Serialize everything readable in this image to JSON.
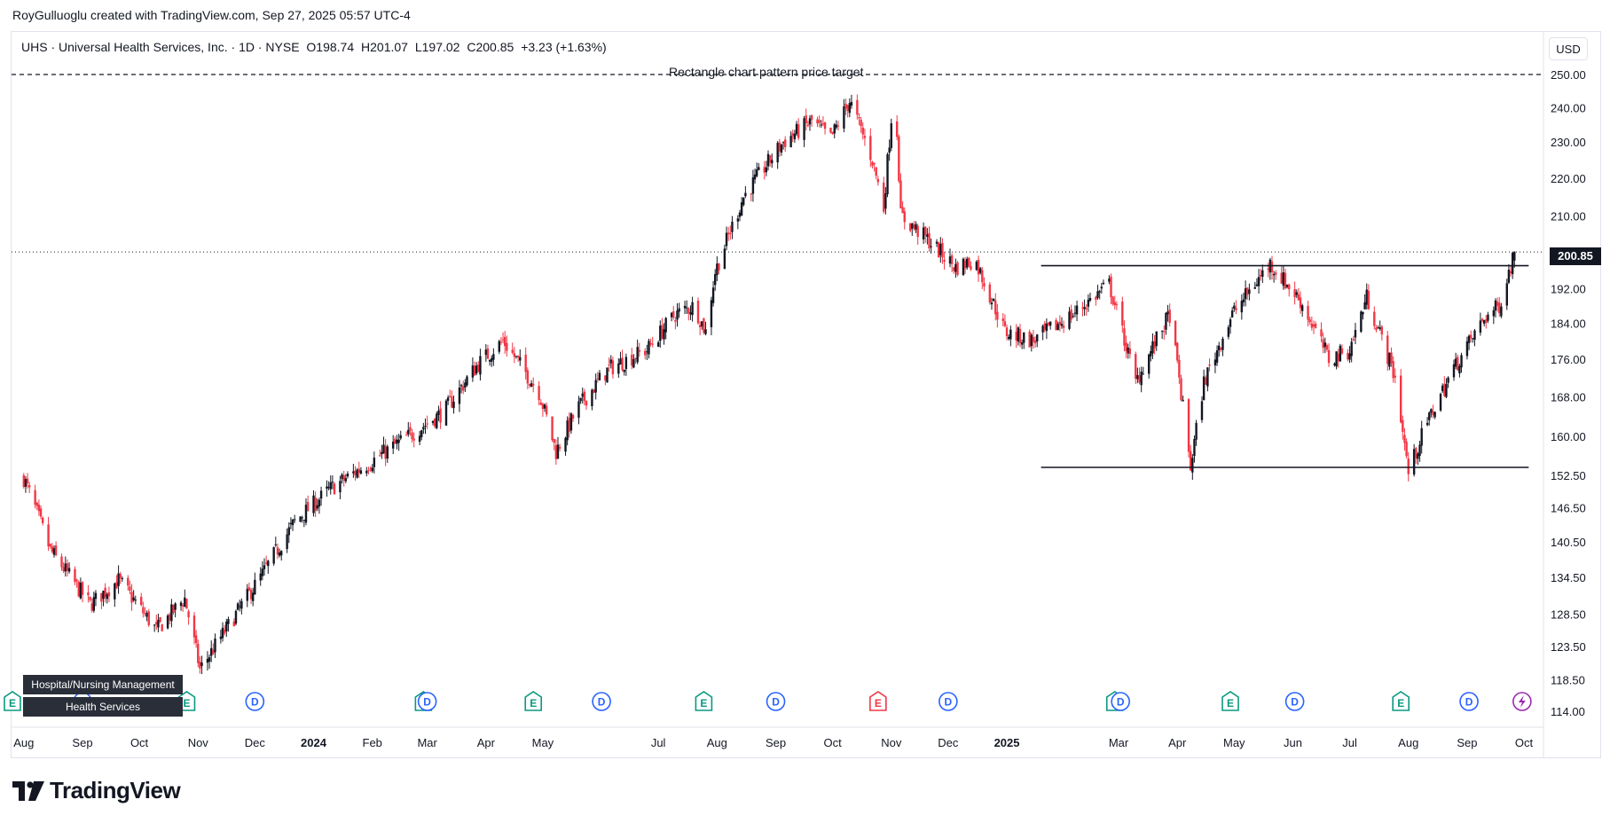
{
  "credit": "RoyGulluoglu created with TradingView.com, Sep 27, 2025 05:57 UTC-4",
  "header": {
    "symbol": "UHS · Universal Health Services, Inc. · 1D · NYSE",
    "open": "O198.74",
    "high": "H201.07",
    "low": "L197.02",
    "close": "C200.85",
    "change": "+3.23 (+1.63%)"
  },
  "currency": "USD",
  "target_label": "Rectangle chart pattern price target",
  "last_price": "200.85",
  "sector_tags": [
    "Hospital/Nursing Management",
    "Health Services"
  ],
  "logo_text": "TradingView",
  "colors": {
    "up": "#131722",
    "down": "#f23645",
    "earnings": "#089981",
    "earnings_future": "#f23645",
    "dividend": "#2962ff",
    "split": "#9c27b0"
  },
  "chart_data": {
    "type": "candlestick",
    "title": "UHS · Universal Health Services, Inc. · 1D · NYSE",
    "y_axis": {
      "ticks": [
        "250.00",
        "240.00",
        "230.00",
        "220.00",
        "210.00",
        "200.85",
        "192.00",
        "184.00",
        "176.00",
        "168.00",
        "160.00",
        "152.50",
        "146.50",
        "140.50",
        "134.50",
        "128.50",
        "123.50",
        "118.50",
        "114.00"
      ],
      "scale": "log"
    },
    "x_axis": {
      "ticks": [
        "Aug",
        "Sep",
        "Oct",
        "Nov",
        "Dec",
        "2024",
        "Feb",
        "Mar",
        "Apr",
        "May",
        "Jul",
        "Aug",
        "Sep",
        "Oct",
        "Nov",
        "Dec",
        "2025",
        "Mar",
        "Apr",
        "May",
        "Jun",
        "Jul",
        "Aug",
        "Sep",
        "Oct"
      ],
      "year_ticks": [
        "2024",
        "2025"
      ]
    },
    "price_path": [
      [
        "2023-08-01",
        152
      ],
      [
        "2023-08-15",
        139
      ],
      [
        "2023-09-05",
        130
      ],
      [
        "2023-09-20",
        134
      ],
      [
        "2023-10-10",
        126
      ],
      [
        "2023-10-25",
        131
      ],
      [
        "2023-11-02",
        120
      ],
      [
        "2023-11-20",
        128
      ],
      [
        "2023-12-05",
        135
      ],
      [
        "2023-12-22",
        144
      ],
      [
        "2024-01-10",
        150
      ],
      [
        "2024-01-31",
        155
      ],
      [
        "2024-02-20",
        160
      ],
      [
        "2024-03-10",
        165
      ],
      [
        "2024-03-28",
        175
      ],
      [
        "2024-04-10",
        180
      ],
      [
        "2024-04-29",
        169
      ],
      [
        "2024-05-08",
        157
      ],
      [
        "2024-05-20",
        166
      ],
      [
        "2024-06-05",
        174
      ],
      [
        "2024-06-25",
        178
      ],
      [
        "2024-07-10",
        186
      ],
      [
        "2024-07-20",
        188
      ],
      [
        "2024-07-26",
        182
      ],
      [
        "2024-07-31",
        196
      ],
      [
        "2024-08-15",
        215
      ],
      [
        "2024-09-05",
        230
      ],
      [
        "2024-09-20",
        236
      ],
      [
        "2024-09-30",
        231
      ],
      [
        "2024-10-10",
        242
      ],
      [
        "2024-10-22",
        225
      ],
      [
        "2024-10-28",
        212
      ],
      [
        "2024-11-01",
        237
      ],
      [
        "2024-11-04",
        233
      ],
      [
        "2024-11-06",
        210
      ],
      [
        "2024-11-20",
        204
      ],
      [
        "2024-12-05",
        197
      ],
      [
        "2024-12-15",
        199
      ],
      [
        "2024-12-31",
        182
      ],
      [
        "2025-01-15",
        180
      ],
      [
        "2025-02-05",
        186
      ],
      [
        "2025-02-24",
        193
      ],
      [
        "2025-03-10",
        171
      ],
      [
        "2025-03-28",
        186
      ],
      [
        "2025-04-08",
        154
      ],
      [
        "2025-04-15",
        171
      ],
      [
        "2025-04-30",
        186
      ],
      [
        "2025-05-20",
        198
      ],
      [
        "2025-06-05",
        189
      ],
      [
        "2025-06-20",
        176
      ],
      [
        "2025-07-01",
        178
      ],
      [
        "2025-07-10",
        190
      ],
      [
        "2025-07-25",
        172
      ],
      [
        "2025-08-01",
        153
      ],
      [
        "2025-08-10",
        162
      ],
      [
        "2025-08-25",
        174
      ],
      [
        "2025-09-10",
        185
      ],
      [
        "2025-09-18",
        188
      ],
      [
        "2025-09-26",
        200.85
      ]
    ],
    "last_close": 200.85,
    "annotations": [
      {
        "type": "horizontal_line",
        "price": 250.0,
        "style": "dashed",
        "label": "Rectangle chart pattern price target"
      },
      {
        "type": "horizontal_line",
        "price": 197.5,
        "style": "solid",
        "from": "2025-01-20",
        "to": "2025-09-26"
      },
      {
        "type": "horizontal_line",
        "price": 154.0,
        "style": "solid",
        "from": "2025-01-20",
        "to": "2025-09-26"
      },
      {
        "type": "horizontal_line",
        "price": 200.85,
        "style": "dotted"
      }
    ],
    "events": [
      {
        "type": "E",
        "date": "2023-07-26"
      },
      {
        "type": "D",
        "date": "2023-09-01"
      },
      {
        "type": "E",
        "date": "2023-10-26"
      },
      {
        "type": "D",
        "date": "2023-12-01"
      },
      {
        "type": "E",
        "date": "2024-02-28"
      },
      {
        "type": "D",
        "date": "2024-03-01"
      },
      {
        "type": "E",
        "date": "2024-04-26"
      },
      {
        "type": "D",
        "date": "2024-06-01"
      },
      {
        "type": "E",
        "date": "2024-07-25"
      },
      {
        "type": "D",
        "date": "2024-09-01"
      },
      {
        "type": "E",
        "date": "2024-10-25"
      },
      {
        "type": "D",
        "date": "2024-12-01"
      },
      {
        "type": "E",
        "date": "2025-02-27"
      },
      {
        "type": "D",
        "date": "2025-03-02"
      },
      {
        "type": "E",
        "date": "2025-04-29"
      },
      {
        "type": "D",
        "date": "2025-06-02"
      },
      {
        "type": "E",
        "date": "2025-07-28"
      },
      {
        "type": "D",
        "date": "2025-09-02"
      },
      {
        "type": "S",
        "date": "2025-09-30"
      }
    ]
  }
}
